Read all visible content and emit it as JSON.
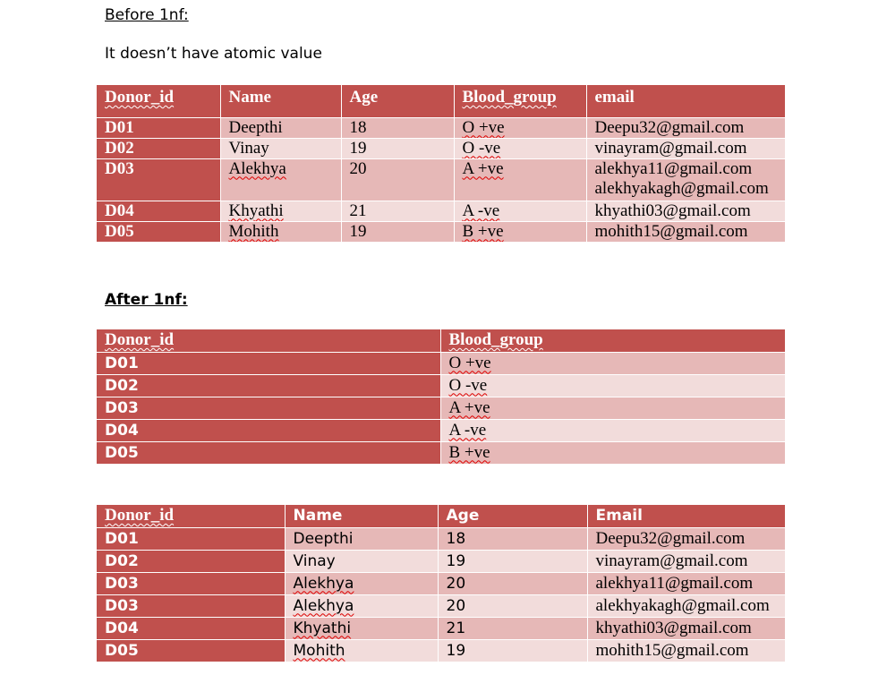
{
  "before": {
    "heading": "Before 1nf:",
    "note": "It doesn’t have atomic value",
    "table": {
      "headers": [
        "Donor_id",
        "Name",
        "Age",
        "Blood_group",
        "email"
      ],
      "rows": [
        {
          "id": "D01",
          "name": "Deepthi",
          "age": "18",
          "blood": "O +ve",
          "email": "Deepu32@gmail.com",
          "email2": ""
        },
        {
          "id": "D02",
          "name": "Vinay",
          "age": "19",
          "blood": "O -ve",
          "email": "vinayram@gmail.com",
          "email2": ""
        },
        {
          "id": "D03",
          "name": "Alekhya",
          "age": "20",
          "blood": "A +ve",
          "email": "alekhya11@gmail.com",
          "email2": "alekhyakagh@gmail.com"
        },
        {
          "id": "D04",
          "name": "Khyathi",
          "age": "21",
          "blood": "A -ve",
          "email": "khyathi03@gmail.com",
          "email2": ""
        },
        {
          "id": "D05",
          "name": "Mohith",
          "age": "19",
          "blood": "B +ve",
          "email": "mohith15@gmail.com",
          "email2": ""
        }
      ]
    }
  },
  "after": {
    "heading": "After 1nf:",
    "table_blood": {
      "headers": [
        "Donor_id",
        "Blood_group"
      ],
      "rows": [
        {
          "id": "D01",
          "blood": "O +ve"
        },
        {
          "id": "D02",
          "blood": "O -ve"
        },
        {
          "id": "D03",
          "blood": "A +ve"
        },
        {
          "id": "D04",
          "blood": "A -ve"
        },
        {
          "id": "D05",
          "blood": "B +ve"
        }
      ]
    },
    "table_info": {
      "headers": [
        "Donor_id",
        "Name",
        "Age",
        "Email"
      ],
      "rows": [
        {
          "id": "D01",
          "name": "Deepthi",
          "age": "18",
          "email": "Deepu32@gmail.com"
        },
        {
          "id": "D02",
          "name": "Vinay",
          "age": "19",
          "email": "vinayram@gmail.com"
        },
        {
          "id": "D03",
          "name": "Alekhya",
          "age": "20",
          "email": "alekhya11@gmail.com"
        },
        {
          "id": "D03",
          "name": "Alekhya",
          "age": "20",
          "email": "alekhyakagh@gmail.com"
        },
        {
          "id": "D04",
          "name": "Khyathi",
          "age": "21",
          "email": "khyathi03@gmail.com"
        },
        {
          "id": "D05",
          "name": "Mohith",
          "age": "19",
          "email": "mohith15@gmail.com"
        }
      ]
    }
  },
  "colors": {
    "header_red": "#c0504d",
    "row_dark": "#e6b8b7",
    "row_light": "#f2dcdb"
  }
}
